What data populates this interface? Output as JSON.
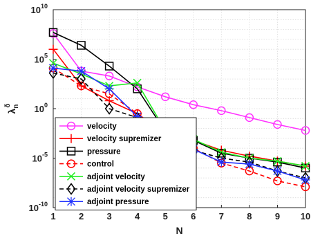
{
  "chart_data": {
    "type": "line",
    "xlabel": "N",
    "ylabel_base": "λ",
    "ylabel_sub": "n",
    "ylabel_sup": "δ",
    "x": [
      1,
      2,
      3,
      4,
      5,
      6,
      7,
      8,
      9,
      10
    ],
    "xlim": [
      1,
      10
    ],
    "ylim_log10": [
      -10,
      10
    ],
    "yscale": "log",
    "y_ticks": [
      {
        "base": "10",
        "exp": "-10",
        "value": -10
      },
      {
        "base": "10",
        "exp": "-5",
        "value": -5
      },
      {
        "base": "10",
        "exp": "0",
        "value": 0
      },
      {
        "base": "10",
        "exp": "5",
        "value": 5
      },
      {
        "base": "10",
        "exp": "10",
        "value": 10
      }
    ],
    "grid": true,
    "legend_position": "bottom-left",
    "series": [
      {
        "name": "velocity",
        "color": "#ff33ff",
        "dash": "solid",
        "marker": "circle",
        "log10_values": [
          7.6,
          3.8,
          3.3,
          2.2,
          1.2,
          0.4,
          -0.2,
          -0.9,
          -1.6,
          -2.2
        ]
      },
      {
        "name": "velocity supremizer",
        "color": "#ff0000",
        "dash": "solid",
        "marker": "plus",
        "log10_values": [
          6.0,
          2.3,
          0.8,
          -0.5,
          -2.5,
          -3.2,
          -4.2,
          -4.8,
          -5.3,
          -5.8
        ]
      },
      {
        "name": "pressure",
        "color": "#000000",
        "dash": "solid",
        "marker": "square",
        "log10_values": [
          7.7,
          6.4,
          4.3,
          2.0,
          -2.3,
          -3.2,
          -4.5,
          -5.0,
          -5.4,
          -6.0
        ]
      },
      {
        "name": "control",
        "color": "#ff0000",
        "dash": "dashed",
        "marker": "circle",
        "log10_values": [
          4.1,
          2.3,
          1.5,
          -0.5,
          -2.5,
          -4.0,
          -5.5,
          -6.3,
          -7.3,
          -7.9
        ]
      },
      {
        "name": "adjoint velocity",
        "color": "#22ee22",
        "dash": "solid",
        "marker": "x",
        "log10_values": [
          4.6,
          3.5,
          2.3,
          2.6,
          -2.2,
          -3.1,
          -4.4,
          -5.0,
          -5.3,
          -5.8
        ]
      },
      {
        "name": "adjoint velocity supremizer",
        "color": "#000000",
        "dash": "dashed",
        "marker": "diamond",
        "log10_values": [
          3.6,
          3.0,
          0.0,
          -0.9,
          -2.7,
          -4.2,
          -5.0,
          -5.4,
          -6.3,
          -7.0
        ]
      },
      {
        "name": "adjoint pressure",
        "color": "#2233ff",
        "dash": "solid",
        "marker": "star",
        "log10_values": [
          4.1,
          3.8,
          2.0,
          -0.8,
          -2.7,
          -4.1,
          -5.4,
          -5.6,
          -6.3,
          -7.2
        ]
      }
    ]
  }
}
